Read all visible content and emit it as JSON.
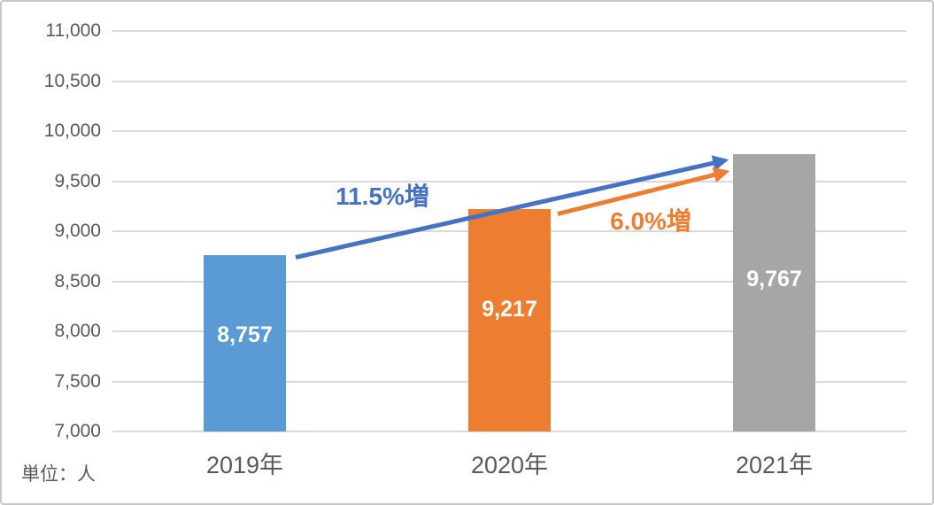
{
  "chart_data": {
    "type": "bar",
    "title": "",
    "xlabel": "",
    "ylabel": "",
    "unit_note": "単位：人",
    "categories": [
      "2019年",
      "2020年",
      "2021年"
    ],
    "values": [
      8757,
      9217,
      9767
    ],
    "value_labels": [
      "8,757",
      "9,217",
      "9,767"
    ],
    "bar_colors": [
      "#5B9BD5",
      "#ED7D31",
      "#A6A6A6"
    ],
    "ylim": [
      7000,
      11000
    ],
    "ytick_step": 500,
    "ytick_labels": [
      "7,000",
      "7,500",
      "8,000",
      "8,500",
      "9,000",
      "9,500",
      "10,000",
      "10,500",
      "11,000"
    ],
    "grid": true,
    "legend": "none",
    "annotations": [
      {
        "text": "11.5%増",
        "color": "#4472C4",
        "from_category": "2019年",
        "to_category": "2021年"
      },
      {
        "text": "6.0%増",
        "color": "#ED7D31",
        "from_category": "2020年",
        "to_category": "2021年"
      }
    ],
    "arrows": [
      {
        "from_index": 0,
        "to_index": 2,
        "color": "#4472C4"
      },
      {
        "from_index": 1,
        "to_index": 2,
        "color": "#ED7D31"
      }
    ]
  },
  "colors": {
    "background": "#FFFFFF",
    "gridline": "#D9D9D9",
    "axis_text": "#595959",
    "frame_border": "#C6C6C6"
  }
}
